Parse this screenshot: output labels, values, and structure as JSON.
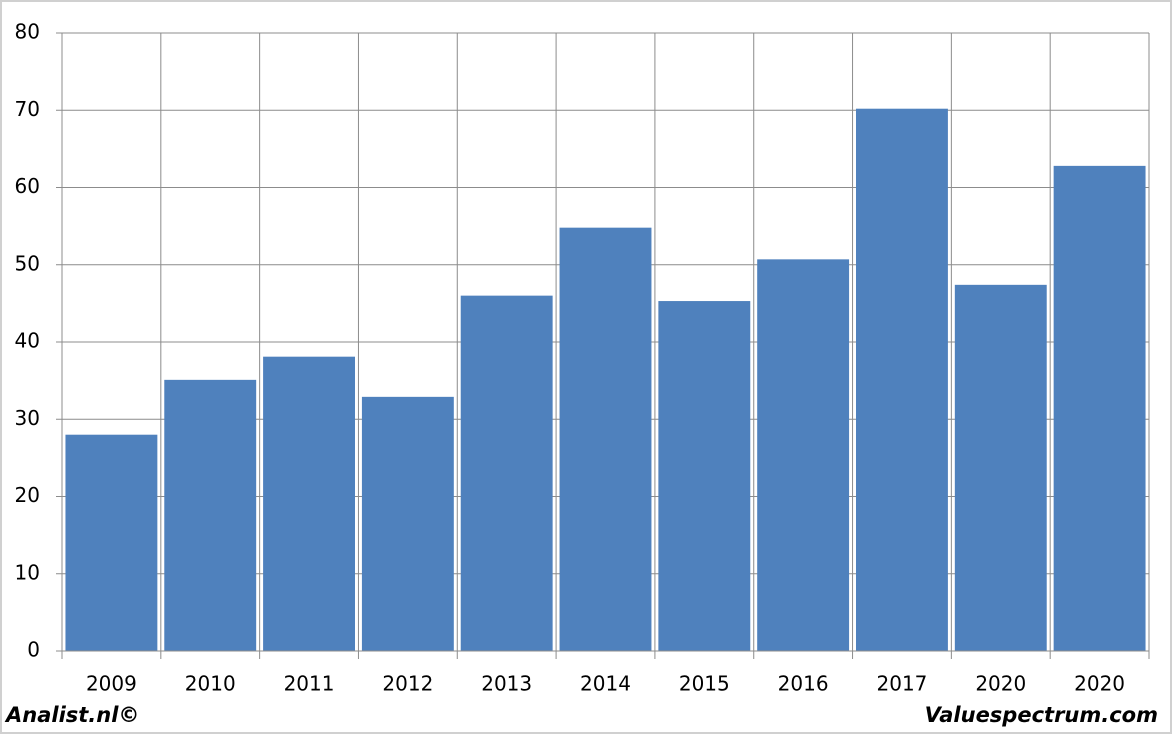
{
  "chart_data": {
    "type": "bar",
    "categories": [
      "2009",
      "2010",
      "2011",
      "2012",
      "2013",
      "2014",
      "2015",
      "2016",
      "2017",
      "2020",
      "2020"
    ],
    "values": [
      28.0,
      35.1,
      38.1,
      32.9,
      46.0,
      54.8,
      45.3,
      50.7,
      70.2,
      47.4,
      62.8
    ],
    "color": "#4f81bd",
    "ylim": [
      0,
      80
    ],
    "yticks": [
      0,
      10,
      20,
      30,
      40,
      50,
      60,
      70,
      80
    ],
    "grid": true,
    "source_left": "Analist.nl©",
    "source_right": "Valuespectrum.com"
  }
}
